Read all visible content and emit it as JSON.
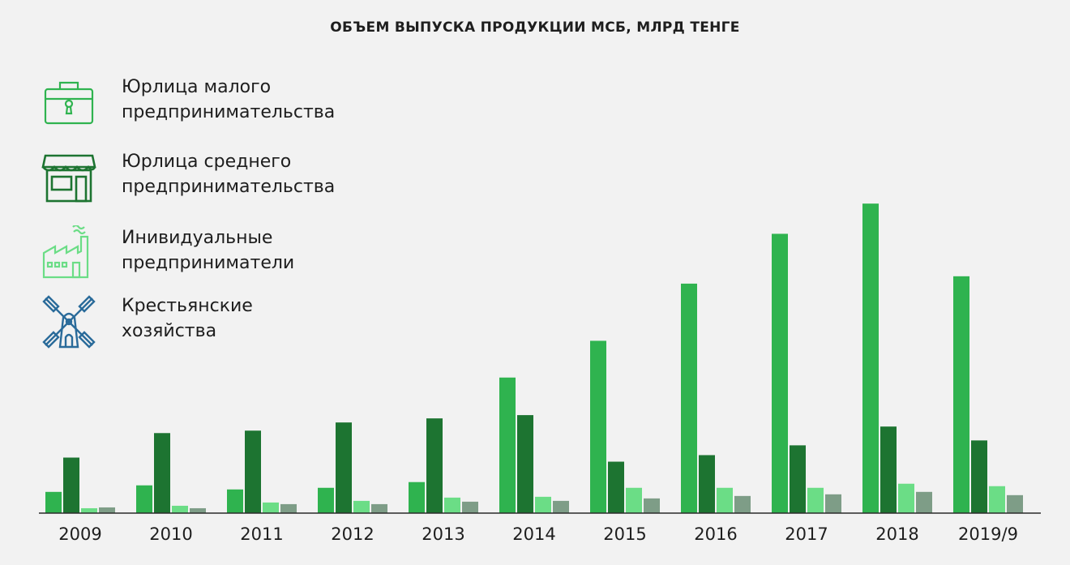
{
  "chart_data": {
    "type": "bar",
    "title": "ОБЪЕМ ВЫПУСКА ПРОДУКЦИИ МСБ, МЛРД ТЕНГЕ",
    "categories": [
      "2009",
      "2010",
      "2011",
      "2012",
      "2013",
      "2014",
      "2015",
      "2016",
      "2017",
      "2018",
      "2019/9"
    ],
    "series": [
      {
        "name": "Юрлица малого\nпредпринимательства",
        "color": "#2fb34f",
        "icon": "briefcase-icon",
        "values": [
          26,
          34,
          29,
          31,
          38,
          166,
          211,
          281,
          342,
          379,
          290
        ]
      },
      {
        "name": "Юрлица среднего\nпредпринимательства",
        "color": "#1d7431",
        "icon": "storefront-icon",
        "values": [
          68,
          98,
          101,
          111,
          116,
          120,
          63,
          71,
          83,
          106,
          89
        ]
      },
      {
        "name": "Инивидуальные\nпредприниматели",
        "color": "#6bdd86",
        "icon": "factory-icon",
        "values": [
          6,
          9,
          13,
          15,
          19,
          20,
          31,
          31,
          31,
          36,
          33
        ]
      },
      {
        "name": "Крестьянские\nхозяйства",
        "color": "#7e9d87",
        "icon": "windmill-icon",
        "values": [
          7,
          6,
          11,
          11,
          14,
          15,
          18,
          21,
          23,
          26,
          22
        ]
      }
    ],
    "ylim": [
      0,
      400
    ],
    "grid": false,
    "legend": "top-left"
  }
}
